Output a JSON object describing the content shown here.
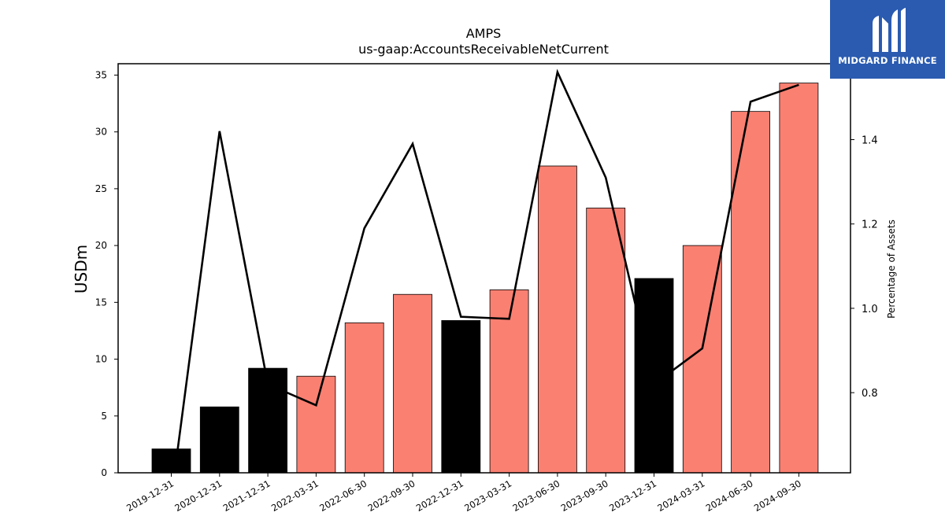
{
  "brand": {
    "name": "MIDGARD FINANCE",
    "bg_color": "#2a5bb0"
  },
  "chart_data": {
    "type": "bar",
    "title": "AMPS",
    "subtitle": "us-gaap:AccountsReceivableNetCurrent",
    "ylabel": "USDm",
    "y2label": "Percentage of Assets",
    "ylim": [
      0,
      36
    ],
    "y2lim": [
      0.61,
      1.58
    ],
    "yticks": [
      0,
      5,
      10,
      15,
      20,
      25,
      30,
      35
    ],
    "y2ticks": [
      0.8,
      1.0,
      1.2,
      1.4,
      1.6
    ],
    "categories": [
      "2019-12-31",
      "2020-12-31",
      "2021-12-31",
      "2022-03-31",
      "2022-06-30",
      "2022-09-30",
      "2022-12-31",
      "2023-03-31",
      "2023-06-30",
      "2023-09-30",
      "2023-12-31",
      "2024-03-31",
      "2024-06-30",
      "2024-09-30"
    ],
    "values": [
      2.1,
      5.8,
      9.2,
      8.5,
      13.2,
      15.7,
      13.4,
      16.1,
      27.0,
      23.3,
      17.1,
      20.0,
      31.8,
      34.3
    ],
    "bar_colors": [
      "#000000",
      "#000000",
      "#000000",
      "#fa8072",
      "#fa8072",
      "#fa8072",
      "#000000",
      "#fa8072",
      "#fa8072",
      "#fa8072",
      "#000000",
      "#fa8072",
      "#fa8072",
      "#fa8072"
    ],
    "percentage_of_assets": [
      0.55,
      1.42,
      0.82,
      0.77,
      1.19,
      1.39,
      0.98,
      0.975,
      1.56,
      1.31,
      0.82,
      0.905,
      1.49,
      1.53
    ],
    "line_color": "#000000",
    "grid": false
  }
}
